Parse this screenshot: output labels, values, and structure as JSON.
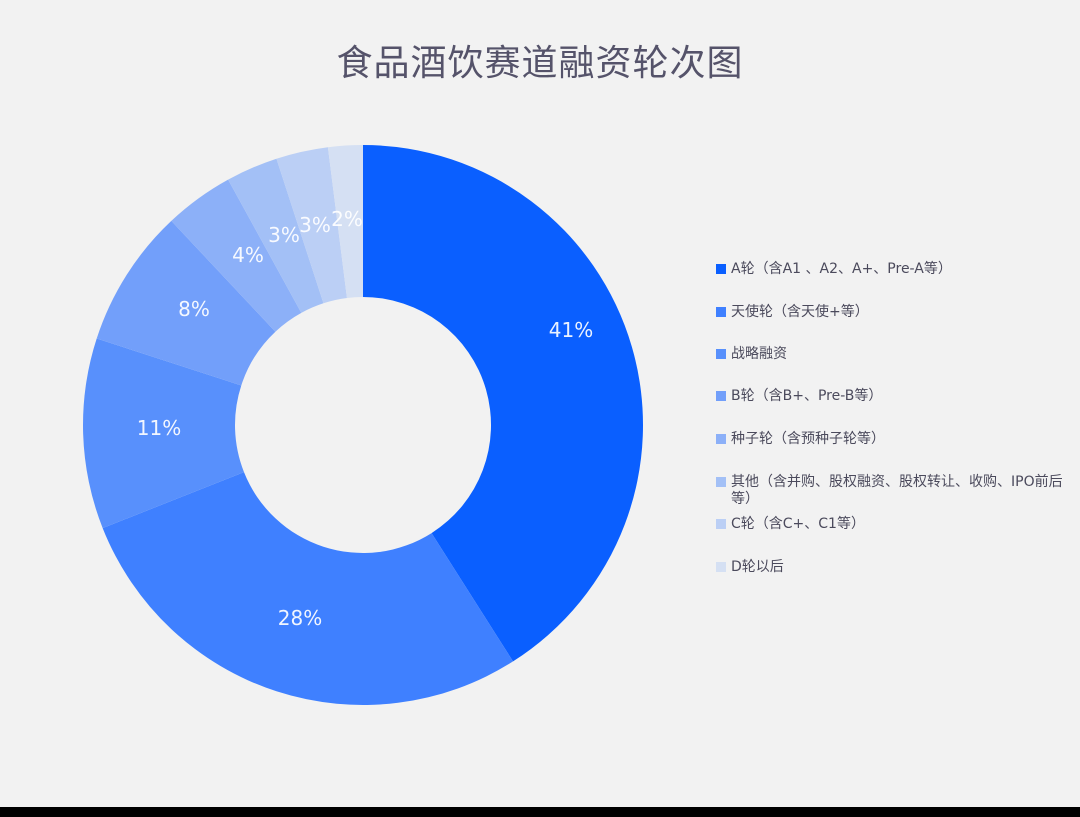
{
  "title": "食品酒饮赛道融资轮次图",
  "chart_data": {
    "type": "pie",
    "variant": "donut",
    "title": "食品酒饮赛道融资轮次图",
    "categories": [
      "A轮（含A1、A2、A+、Pre-A等）",
      "天使轮（含天使+等）",
      "战略融资",
      "B轮（含B+、Pre-B等）",
      "种子轮（含预种子轮等）",
      "其他（含并购、股权融资、股权转让、收购、IPO前后等）",
      "C轮（含C+、C1等）",
      "D轮以后"
    ],
    "values": [
      41,
      28,
      11,
      8,
      4,
      3,
      3,
      2
    ],
    "labels": [
      "41%",
      "28%",
      "11%",
      "8%",
      "4%",
      "3%",
      "3%",
      "2%"
    ],
    "colors": [
      "#0a5fff",
      "#3f80ff",
      "#5890fc",
      "#729ffa",
      "#8cb0f8",
      "#a3c0f6",
      "#bbcff5",
      "#d5e0f3"
    ],
    "start_angle": "top, clockwise",
    "legend_position": "right"
  },
  "legend": {
    "items": [
      {
        "label": "A轮（含A1 、A2、A+、Pre-A等）",
        "color": "#0a5fff"
      },
      {
        "label": "天使轮（含天使+等）",
        "color": "#3f80ff"
      },
      {
        "label": "战略融资",
        "color": "#5890fc"
      },
      {
        "label": "B轮（含B+、Pre-B等）",
        "color": "#729ffa"
      },
      {
        "label": "种子轮（含预种子轮等）",
        "color": "#8cb0f8"
      },
      {
        "label": "其他（含并购、股权融资、股权转让、收购、IPO前后等）",
        "color": "#a3c0f6"
      },
      {
        "label": "C轮（含C+、C1等）",
        "color": "#bbcff5"
      },
      {
        "label": "D轮以后",
        "color": "#d5e0f3"
      }
    ]
  }
}
